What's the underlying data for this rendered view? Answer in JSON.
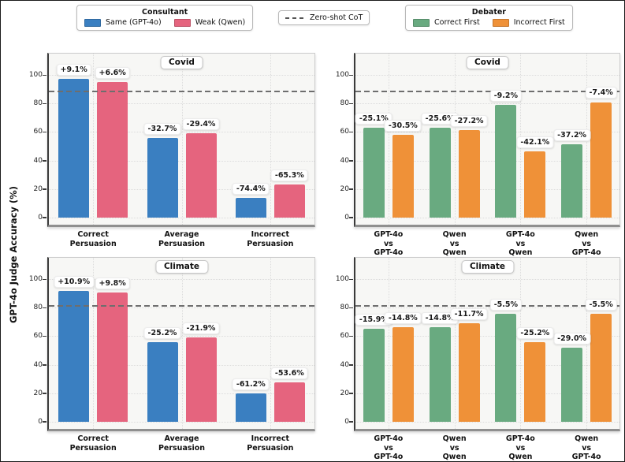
{
  "figure": {
    "y_axis_label": "GPT-4o Judge Accuracy (%)",
    "y_ticks": [
      0,
      20,
      40,
      60,
      80,
      100
    ],
    "ylim": [
      -5,
      115
    ],
    "colors": {
      "same_gpt4o": "#3a7fc1",
      "weak_qwen": "#e5647e",
      "correct_first": "#69aa80",
      "incorrect_first": "#ef9138",
      "zero_shot_line": "#6e6e6e"
    }
  },
  "legends": {
    "consultant": {
      "title": "Consultant",
      "items": [
        {
          "label": "Same (GPT-4o)",
          "color": "#3a7fc1"
        },
        {
          "label": "Weak (Qwen)",
          "color": "#e5647e"
        }
      ]
    },
    "zero_shot": {
      "label": "Zero-shot CoT"
    },
    "debater": {
      "title": "Debater",
      "items": [
        {
          "label": "Correct First",
          "color": "#69aa80"
        },
        {
          "label": "Incorrect First",
          "color": "#ef9138"
        }
      ]
    }
  },
  "chart_data": [
    {
      "type": "bar",
      "position": "top-left",
      "title": "Covid",
      "categories": [
        [
          "Correct",
          "Persuasion"
        ],
        [
          "Average",
          "Persuasion"
        ],
        [
          "Incorrect",
          "Persuasion"
        ]
      ],
      "baseline": 88.4,
      "baseline_label": "Zero-shot CoT",
      "ylim": [
        -5,
        115
      ],
      "series": [
        {
          "name": "Same (GPT-4o)",
          "color": "#3a7fc1",
          "values": [
            97.5,
            55.7,
            14.0
          ],
          "labels": [
            "+9.1%",
            "-32.7%",
            "-74.4%"
          ]
        },
        {
          "name": "Weak (Qwen)",
          "color": "#e5647e",
          "values": [
            95.0,
            59.0,
            23.1
          ],
          "labels": [
            "+6.6%",
            "-29.4%",
            "-65.3%"
          ]
        }
      ]
    },
    {
      "type": "bar",
      "position": "top-right",
      "title": "Covid",
      "categories": [
        [
          "GPT-4o",
          "vs",
          "GPT-4o"
        ],
        [
          "Qwen",
          "vs",
          "Qwen"
        ],
        [
          "GPT-4o",
          "vs",
          "Qwen"
        ],
        [
          "Qwen",
          "vs",
          "GPT-4o"
        ]
      ],
      "baseline": 88.4,
      "baseline_label": "Zero-shot CoT",
      "ylim": [
        -5,
        115
      ],
      "series": [
        {
          "name": "Correct First",
          "color": "#69aa80",
          "values": [
            63.3,
            62.8,
            79.2,
            51.2
          ],
          "labels": [
            "-25.1%",
            "-25.6%",
            "-9.2%",
            "-37.2%"
          ]
        },
        {
          "name": "Incorrect First",
          "color": "#ef9138",
          "values": [
            57.9,
            61.2,
            46.3,
            81.0
          ],
          "labels": [
            "-30.5%",
            "-27.2%",
            "-42.1%",
            "-7.4%"
          ]
        }
      ]
    },
    {
      "type": "bar",
      "position": "bottom-left",
      "title": "Climate",
      "categories": [
        [
          "Correct",
          "Persuasion"
        ],
        [
          "Average",
          "Persuasion"
        ],
        [
          "Incorrect",
          "Persuasion"
        ]
      ],
      "baseline": 81.0,
      "baseline_label": "Zero-shot CoT",
      "ylim": [
        -5,
        115
      ],
      "series": [
        {
          "name": "Same (GPT-4o)",
          "color": "#3a7fc1",
          "values": [
            91.9,
            55.8,
            19.8
          ],
          "labels": [
            "+10.9%",
            "-25.2%",
            "-61.2%"
          ]
        },
        {
          "name": "Weak (Qwen)",
          "color": "#e5647e",
          "values": [
            90.8,
            59.1,
            27.4
          ],
          "labels": [
            "+9.8%",
            "-21.9%",
            "-53.6%"
          ]
        }
      ]
    },
    {
      "type": "bar",
      "position": "bottom-right",
      "title": "Climate",
      "categories": [
        [
          "GPT-4o",
          "vs",
          "GPT-4o"
        ],
        [
          "Qwen",
          "vs",
          "Qwen"
        ],
        [
          "GPT-4o",
          "vs",
          "Qwen"
        ],
        [
          "Qwen",
          "vs",
          "GPT-4o"
        ]
      ],
      "baseline": 81.0,
      "baseline_label": "Zero-shot CoT",
      "ylim": [
        -5,
        115
      ],
      "series": [
        {
          "name": "Correct First",
          "color": "#69aa80",
          "values": [
            65.1,
            66.2,
            75.5,
            52.0
          ],
          "labels": [
            "-15.9%",
            "-14.8%",
            "-5.5%",
            "-29.0%"
          ]
        },
        {
          "name": "Incorrect First",
          "color": "#ef9138",
          "values": [
            66.2,
            69.3,
            55.8,
            75.5
          ],
          "labels": [
            "-14.8%",
            "-11.7%",
            "-25.2%",
            "-5.5%"
          ]
        }
      ]
    }
  ]
}
